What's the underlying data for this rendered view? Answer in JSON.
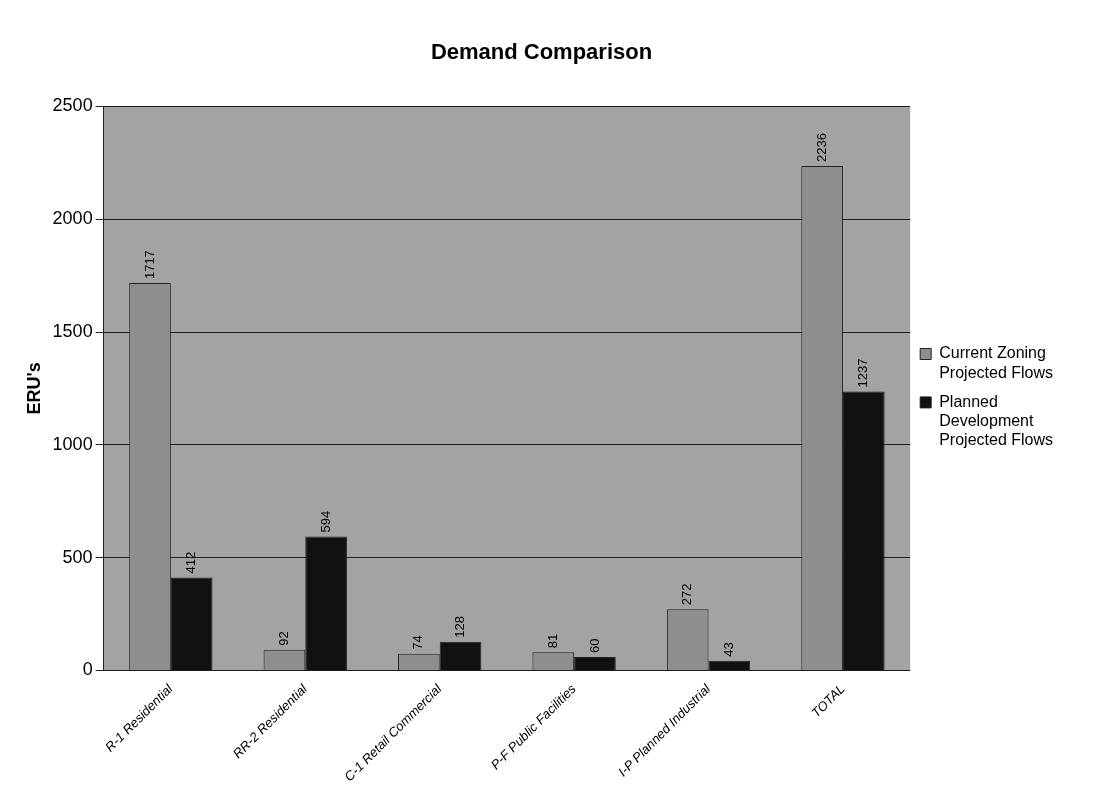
{
  "chart_data": {
    "type": "bar",
    "title": "Demand Comparison",
    "ylabel": "ERU's",
    "categories": [
      "R-1 Residential",
      "RR-2 Residential",
      "C-1 Retail Commercial",
      "P-F Public Facilities",
      "I-P Planned Industrial",
      "TOTAL"
    ],
    "series": [
      {
        "name": "Current Zoning Projected Flows",
        "color": "#8e8e8e",
        "values": [
          1717,
          92,
          74,
          81,
          272,
          2236
        ]
      },
      {
        "name": "Planned Development Projected Flows",
        "color": "#111111",
        "values": [
          412,
          594,
          128,
          60,
          43,
          1237
        ]
      }
    ],
    "ylim": [
      0,
      2500
    ],
    "yticks": [
      0,
      500,
      1000,
      1500,
      2000,
      2500
    ],
    "grid": "y",
    "legend": "right",
    "data_labels": true
  }
}
